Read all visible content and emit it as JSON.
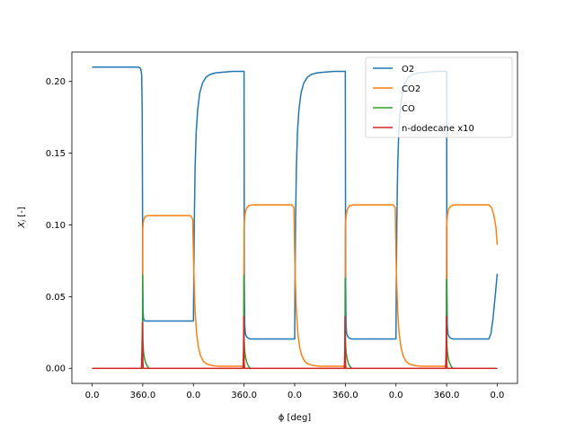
{
  "chart_data": {
    "type": "line",
    "xlabel": "ϕ [deg]",
    "ylabel_main": "X",
    "ylabel_sub": "i",
    "ylabel_unit": " [-]",
    "x_ticks": [
      {
        "x": 0,
        "label": "0.0"
      },
      {
        "x": 360,
        "label": "360.0"
      },
      {
        "x": 720,
        "label": "0.0"
      },
      {
        "x": 1080,
        "label": "360.0"
      },
      {
        "x": 1440,
        "label": "0.0"
      },
      {
        "x": 1800,
        "label": "360.0"
      },
      {
        "x": 2160,
        "label": "0.0"
      },
      {
        "x": 2520,
        "label": "360.0"
      },
      {
        "x": 2880,
        "label": "0.0"
      }
    ],
    "xlim": [
      -144,
      3024
    ],
    "y_ticks": [
      0.0,
      0.05,
      0.1,
      0.15,
      0.2
    ],
    "y_tick_labels": [
      "0.00",
      "0.05",
      "0.10",
      "0.15",
      "0.20"
    ],
    "ylim": [
      -0.0105,
      0.2205
    ],
    "grid": false,
    "legend_position": "top-right",
    "series": [
      {
        "name": "O2",
        "color": "#1f77b4",
        "x": [
          0,
          330,
          345,
          352,
          356,
          360,
          362,
          365,
          370,
          378,
          390,
          720,
          722,
          726,
          732,
          740,
          750,
          765,
          785,
          810,
          840,
          880,
          930,
          1000,
          1080,
          1082,
          1085,
          1090,
          1098,
          1110,
          1125,
          1150,
          1440,
          1442,
          1446,
          1452,
          1460,
          1470,
          1485,
          1505,
          1530,
          1560,
          1600,
          1650,
          1720,
          1800,
          1802,
          1805,
          1810,
          1818,
          1830,
          1845,
          1870,
          2160,
          2162,
          2166,
          2172,
          2180,
          2190,
          2205,
          2225,
          2250,
          2280,
          2320,
          2370,
          2440,
          2520,
          2522,
          2525,
          2530,
          2538,
          2550,
          2565,
          2590,
          2820,
          2835,
          2850,
          2865,
          2880
        ],
        "y": [
          0.21,
          0.21,
          0.209,
          0.205,
          0.18,
          0.06,
          0.04,
          0.035,
          0.0335,
          0.033,
          0.033,
          0.033,
          0.055,
          0.1,
          0.14,
          0.165,
          0.18,
          0.192,
          0.199,
          0.203,
          0.205,
          0.206,
          0.2065,
          0.207,
          0.207,
          0.06,
          0.03,
          0.024,
          0.022,
          0.021,
          0.0205,
          0.0205,
          0.0205,
          0.055,
          0.1,
          0.14,
          0.165,
          0.18,
          0.192,
          0.199,
          0.203,
          0.205,
          0.206,
          0.2065,
          0.207,
          0.207,
          0.06,
          0.03,
          0.024,
          0.022,
          0.021,
          0.0205,
          0.0205,
          0.0205,
          0.055,
          0.1,
          0.14,
          0.165,
          0.18,
          0.192,
          0.199,
          0.203,
          0.205,
          0.206,
          0.2065,
          0.207,
          0.207,
          0.06,
          0.03,
          0.024,
          0.022,
          0.021,
          0.0205,
          0.0205,
          0.0205,
          0.024,
          0.035,
          0.05,
          0.066
        ]
      },
      {
        "name": "CO2",
        "color": "#ff7f0e",
        "x": [
          0,
          355,
          358,
          360,
          362,
          366,
          372,
          380,
          395,
          420,
          700,
          715,
          720,
          725,
          732,
          742,
          755,
          770,
          790,
          815,
          850,
          900,
          1000,
          1070,
          1078,
          1080,
          1082,
          1086,
          1092,
          1100,
          1115,
          1140,
          1420,
          1435,
          1440,
          1445,
          1452,
          1462,
          1475,
          1490,
          1510,
          1535,
          1570,
          1620,
          1720,
          1790,
          1798,
          1800,
          1802,
          1806,
          1812,
          1820,
          1835,
          1860,
          2140,
          2155,
          2160,
          2165,
          2172,
          2182,
          2195,
          2210,
          2230,
          2255,
          2290,
          2340,
          2440,
          2510,
          2518,
          2520,
          2522,
          2526,
          2532,
          2540,
          2555,
          2580,
          2820,
          2840,
          2855,
          2870,
          2880
        ],
        "y": [
          0.0,
          0.0,
          0.001,
          0.098,
          0.1,
          0.103,
          0.105,
          0.106,
          0.1065,
          0.1065,
          0.1065,
          0.104,
          0.08,
          0.06,
          0.04,
          0.025,
          0.015,
          0.009,
          0.005,
          0.003,
          0.002,
          0.0015,
          0.0015,
          0.0015,
          0.003,
          0.098,
          0.102,
          0.107,
          0.11,
          0.112,
          0.1135,
          0.114,
          0.114,
          0.112,
          0.08,
          0.06,
          0.04,
          0.025,
          0.015,
          0.009,
          0.005,
          0.003,
          0.002,
          0.0015,
          0.0015,
          0.0015,
          0.003,
          0.098,
          0.102,
          0.107,
          0.11,
          0.112,
          0.1135,
          0.114,
          0.114,
          0.112,
          0.08,
          0.06,
          0.04,
          0.025,
          0.015,
          0.009,
          0.005,
          0.003,
          0.002,
          0.0015,
          0.0015,
          0.0015,
          0.003,
          0.098,
          0.102,
          0.107,
          0.11,
          0.112,
          0.1135,
          0.114,
          0.114,
          0.112,
          0.107,
          0.099,
          0.086
        ]
      },
      {
        "name": "CO",
        "color": "#2ca02c",
        "x": [
          0,
          356,
          358,
          359,
          360,
          361,
          363,
          366,
          372,
          380,
          392,
          405,
          1076,
          1078,
          1079,
          1080,
          1081,
          1083,
          1086,
          1092,
          1100,
          1112,
          1125,
          1796,
          1798,
          1799,
          1800,
          1801,
          1803,
          1806,
          1812,
          1820,
          1832,
          1845,
          2516,
          2518,
          2519,
          2520,
          2521,
          2523,
          2526,
          2532,
          2540,
          2552,
          2565,
          2880
        ],
        "y": [
          0.0,
          0.0,
          0.01,
          0.065,
          0.03,
          0.02,
          0.015,
          0.011,
          0.007,
          0.004,
          0.0015,
          0.0,
          0.0,
          0.01,
          0.065,
          0.03,
          0.02,
          0.015,
          0.011,
          0.007,
          0.004,
          0.0015,
          0.0,
          0.0,
          0.01,
          0.063,
          0.03,
          0.02,
          0.015,
          0.011,
          0.007,
          0.004,
          0.0015,
          0.0,
          0.0,
          0.01,
          0.062,
          0.03,
          0.02,
          0.015,
          0.011,
          0.007,
          0.004,
          0.0015,
          0.0,
          0.0
        ]
      },
      {
        "name": "n-dodecane x10",
        "color": "#d62728",
        "x": [
          0,
          350,
          352,
          354,
          356,
          357,
          358,
          359,
          361,
          364,
          1072,
          1074,
          1076,
          1077,
          1078,
          1079,
          1081,
          1084,
          1792,
          1794,
          1796,
          1797,
          1798,
          1799,
          1801,
          1804,
          2512,
          2514,
          2516,
          2517,
          2518,
          2519,
          2521,
          2524,
          2880
        ],
        "y": [
          0.0,
          0.0,
          0.004,
          0.012,
          0.022,
          0.03,
          0.032,
          0.018,
          0.004,
          0.0,
          0.0,
          0.004,
          0.012,
          0.022,
          0.036,
          0.02,
          0.004,
          0.0,
          0.0,
          0.004,
          0.012,
          0.022,
          0.036,
          0.02,
          0.004,
          0.0,
          0.0,
          0.004,
          0.012,
          0.022,
          0.036,
          0.02,
          0.004,
          0.0,
          0.0
        ]
      }
    ]
  }
}
